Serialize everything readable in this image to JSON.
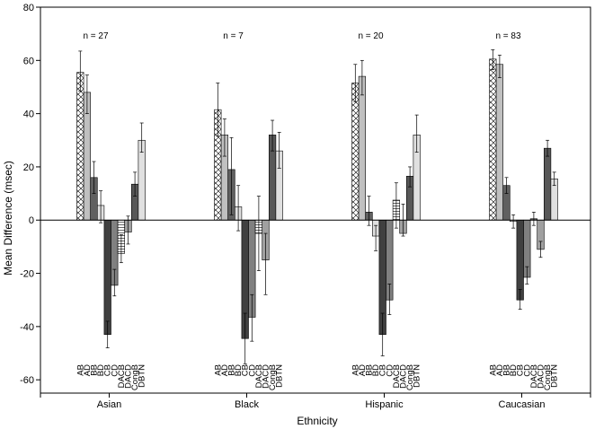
{
  "chart_data": {
    "type": "bar",
    "title": "",
    "xlabel": "Ethnicity",
    "ylabel": "Mean Difference (msec)",
    "ylim": [
      -65,
      80
    ],
    "yticks": [
      -60,
      -40,
      -20,
      0,
      20,
      40,
      60,
      80
    ],
    "grid": false,
    "categories": [
      "Asian",
      "Black",
      "Hispanic",
      "Caucasian"
    ],
    "group_n_labels": [
      "n = 27",
      "n = 7",
      "n = 20",
      "n = 83"
    ],
    "series": [
      {
        "name": "AB",
        "fill": "hatch-cross",
        "color": "#ffffff",
        "values": [
          55.5,
          41.5,
          51.5,
          60.5
        ],
        "err_hi": [
          63.5,
          51.5,
          58.5,
          64.0
        ],
        "err_lo": [
          48.5,
          31.5,
          44.5,
          56.5
        ]
      },
      {
        "name": "AD",
        "fill": "solid",
        "color": "#c0c0c0",
        "values": [
          48.0,
          32.0,
          54.0,
          58.5
        ],
        "err_hi": [
          54.5,
          38.0,
          60.0,
          62.0
        ],
        "err_lo": [
          40.0,
          24.0,
          47.0,
          53.5
        ]
      },
      {
        "name": "BB",
        "fill": "solid",
        "color": "#606060",
        "values": [
          16.0,
          19.0,
          3.0,
          13.0
        ],
        "err_hi": [
          22.0,
          31.0,
          9.0,
          16.0
        ],
        "err_lo": [
          10.0,
          2.0,
          -2.0,
          10.0
        ]
      },
      {
        "name": "BD",
        "fill": "solid",
        "color": "#e0e0e0",
        "values": [
          5.5,
          5.0,
          -6.0,
          -0.5
        ],
        "err_hi": [
          11.0,
          13.0,
          -2.0,
          2.0
        ],
        "err_lo": [
          -1.0,
          -4.0,
          -11.5,
          -3.0
        ]
      },
      {
        "name": "CB",
        "fill": "solid",
        "color": "#404040",
        "values": [
          -43.0,
          -44.5,
          -43.0,
          -30.0
        ],
        "err_hi": [
          -38.0,
          -35.0,
          -35.0,
          -26.0
        ],
        "err_lo": [
          -48.0,
          -54.0,
          -51.0,
          -33.5
        ]
      },
      {
        "name": "CD",
        "fill": "solid",
        "color": "#808080",
        "values": [
          -24.5,
          -36.5,
          -30.0,
          -21.5
        ],
        "err_hi": [
          -18.5,
          -28.0,
          -24.0,
          -17.5
        ],
        "err_lo": [
          -28.5,
          -45.5,
          -35.5,
          -24.0
        ]
      },
      {
        "name": "DACB",
        "fill": "hatch-horizontal",
        "color": "#ffffff",
        "values": [
          -12.5,
          -5.0,
          7.5,
          0.5
        ],
        "err_hi": [
          -5.5,
          9.0,
          14.0,
          3.0
        ],
        "err_lo": [
          -16.0,
          -19.0,
          -3.0,
          -2.0
        ]
      },
      {
        "name": "DACD",
        "fill": "solid",
        "color": "#a0a0a0",
        "values": [
          -4.5,
          -15.0,
          -5.0,
          -11.0
        ],
        "err_hi": [
          1.5,
          -5.0,
          6.0,
          -8.0
        ],
        "err_lo": [
          -9.0,
          -28.0,
          -6.0,
          -14.0
        ]
      },
      {
        "name": "CongB",
        "fill": "solid",
        "color": "#585858",
        "values": [
          13.5,
          32.0,
          16.5,
          27.0
        ],
        "err_hi": [
          18.0,
          37.5,
          20.0,
          30.0
        ],
        "err_lo": [
          9.0,
          26.0,
          12.5,
          24.0
        ]
      },
      {
        "name": "DBTN",
        "fill": "solid",
        "color": "#e0e0e0",
        "values": [
          30.0,
          26.0,
          32.0,
          15.5
        ],
        "err_hi": [
          36.5,
          33.0,
          39.5,
          18.0
        ],
        "err_lo": [
          25.5,
          19.5,
          25.5,
          13.0
        ]
      }
    ]
  }
}
